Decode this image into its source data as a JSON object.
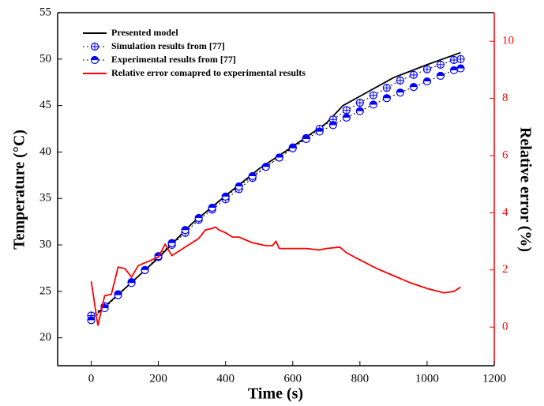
{
  "chart_data": {
    "type": "line",
    "x_label": "Time (s)",
    "y_label": "Temperature (°C)",
    "y2_label": "Relative error (%)",
    "xlim": [
      -100,
      1200
    ],
    "xticks": [
      0,
      200,
      400,
      600,
      800,
      1000,
      1200
    ],
    "ylim": [
      17,
      55
    ],
    "yticks": [
      20,
      25,
      30,
      35,
      40,
      45,
      50,
      55
    ],
    "y2lim": [
      -1.35,
      11
    ],
    "y2ticks": [
      0,
      2,
      4,
      6,
      8,
      10
    ],
    "y2color": "#ff0000",
    "legend": "upper left",
    "series": [
      {
        "name": "Presented model",
        "color": "#000000",
        "style": "line",
        "x": [
          20,
          100,
          200,
          300,
          400,
          500,
          600,
          700,
          750,
          800,
          900,
          1000,
          1100
        ],
        "values": [
          22.7,
          25.3,
          28.6,
          32.3,
          35.3,
          38.2,
          40.6,
          43.1,
          45.0,
          46.0,
          48.0,
          49.4,
          50.7
        ]
      },
      {
        "name": "Simulation results from [77]",
        "color": "#0000ff",
        "style": "markers",
        "marker": "circle-cross",
        "x": [
          0,
          40,
          80,
          120,
          160,
          200,
          240,
          280,
          320,
          360,
          400,
          440,
          480,
          520,
          560,
          600,
          640,
          680,
          720,
          760,
          800,
          840,
          880,
          920,
          960,
          1000,
          1040,
          1080,
          1100
        ],
        "values": [
          22.4,
          23.4,
          24.7,
          26.0,
          27.3,
          28.7,
          30.0,
          31.3,
          32.7,
          33.8,
          34.9,
          36.0,
          37.2,
          38.4,
          39.4,
          40.5,
          41.5,
          42.5,
          43.5,
          44.5,
          45.3,
          46.1,
          46.9,
          47.7,
          48.3,
          48.9,
          49.4,
          49.9,
          50.0
        ]
      },
      {
        "name": "Experimental results from [77]",
        "color": "#0000ff",
        "style": "markers",
        "marker": "half-filled",
        "x": [
          0,
          40,
          80,
          120,
          160,
          200,
          240,
          280,
          320,
          360,
          400,
          440,
          480,
          520,
          560,
          600,
          640,
          680,
          720,
          760,
          800,
          840,
          880,
          920,
          960,
          1000,
          1040,
          1080,
          1100
        ],
        "values": [
          21.9,
          23.2,
          24.6,
          25.9,
          27.3,
          28.8,
          30.2,
          31.6,
          32.9,
          34.0,
          35.2,
          36.3,
          37.4,
          38.4,
          39.4,
          40.4,
          41.4,
          42.2,
          42.9,
          43.7,
          44.4,
          45.1,
          45.8,
          46.4,
          47.0,
          47.6,
          48.2,
          48.8,
          49.0
        ]
      },
      {
        "name": "Relative error comapred to experimental results",
        "color": "#ff0000",
        "style": "line",
        "axis": "y2",
        "x": [
          0,
          20,
          40,
          60,
          80,
          100,
          120,
          140,
          160,
          180,
          200,
          220,
          240,
          260,
          280,
          300,
          320,
          340,
          360,
          370,
          380,
          400,
          420,
          440,
          460,
          480,
          500,
          520,
          540,
          550,
          560,
          600,
          640,
          680,
          700,
          740,
          760,
          800,
          850,
          900,
          950,
          1000,
          1050,
          1080,
          1100
        ],
        "values": [
          1.6,
          0.05,
          1.1,
          1.15,
          2.1,
          2.05,
          1.75,
          2.15,
          2.25,
          2.35,
          2.45,
          2.9,
          2.5,
          2.65,
          2.8,
          2.95,
          3.1,
          3.4,
          3.45,
          3.5,
          3.4,
          3.3,
          3.15,
          3.15,
          3.05,
          2.95,
          2.9,
          2.85,
          2.85,
          3.0,
          2.75,
          2.75,
          2.75,
          2.7,
          2.75,
          2.8,
          2.6,
          2.35,
          2.05,
          1.8,
          1.55,
          1.35,
          1.2,
          1.25,
          1.4
        ]
      }
    ]
  }
}
